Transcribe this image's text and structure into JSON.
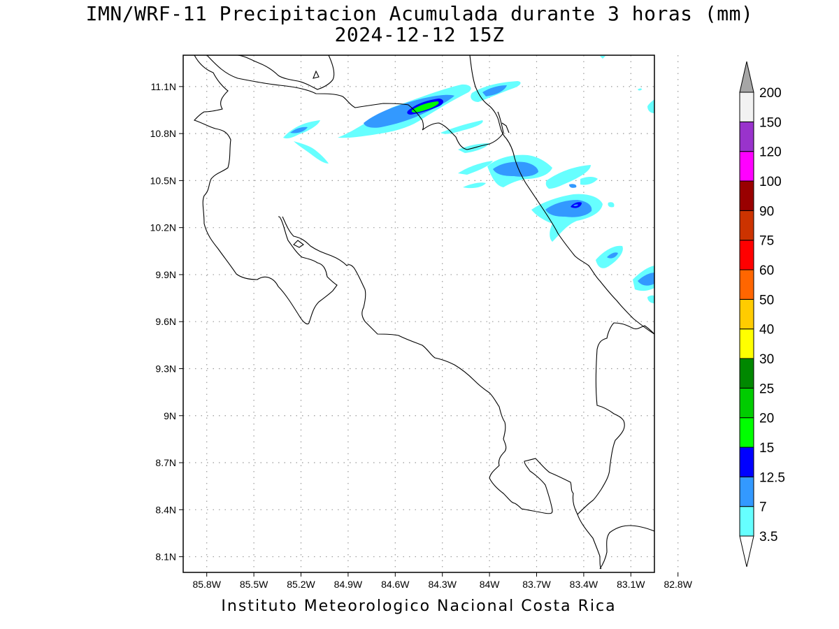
{
  "title": {
    "line1": "IMN/WRF-11 Precipitacion Acumulada durante 3 horas (mm)",
    "line2": "2024-12-12 15Z"
  },
  "footer": "Instituto Meteorologico Nacional Costa Rica",
  "map": {
    "lon_range": [
      -85.95,
      -82.95
    ],
    "lat_range": [
      8.0,
      11.3
    ],
    "gridlines": "dotted",
    "lon_ticks": [
      "85.8W",
      "85.5W",
      "85.2W",
      "84.9W",
      "84.6W",
      "84.3W",
      "84W",
      "83.7W",
      "83.4W",
      "83.1W",
      "82.8W"
    ],
    "lat_ticks": [
      "11.1N",
      "10.8N",
      "10.5N",
      "10.2N",
      "9.9N",
      "9.6N",
      "9.3N",
      "9N",
      "8.7N",
      "8.4N",
      "8.1N"
    ]
  },
  "colorbar": {
    "arrows": "both-ends",
    "levels": [
      "3.5",
      "7",
      "12.5",
      "15",
      "20",
      "25",
      "30",
      "40",
      "50",
      "60",
      "75",
      "90",
      "100",
      "120",
      "150",
      "200"
    ],
    "colors": [
      "#66ffff",
      "#3399ff",
      "#0000ff",
      "#00ff00",
      "#00cc00",
      "#008800",
      "#ffff00",
      "#ffcc00",
      "#ff6600",
      "#ff0000",
      "#cc3300",
      "#990000",
      "#ff00ff",
      "#9933cc",
      "#f2f2f2"
    ],
    "top_arrow_color": "#a6a6a6"
  }
}
